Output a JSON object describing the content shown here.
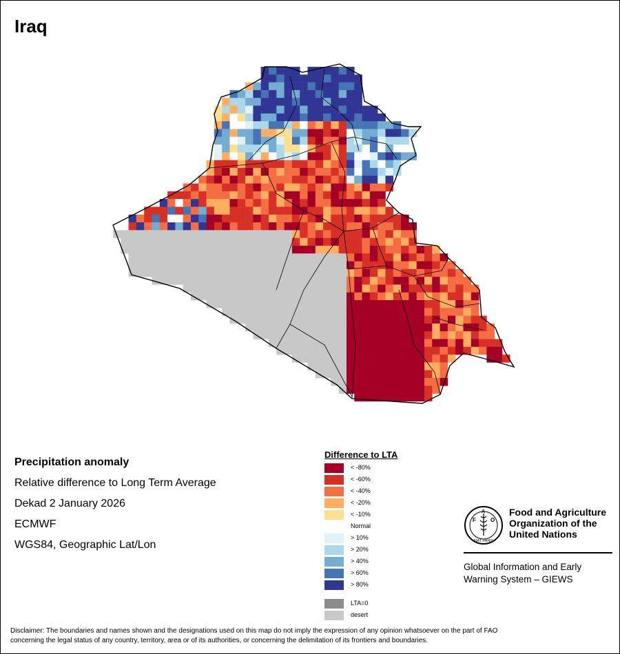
{
  "title": "Iraq",
  "info": {
    "heading": "Precipitation anomaly",
    "subtitle": "Relative difference to Long Term Average",
    "period": "Dekad 2 January 2026",
    "model": "ECMWF",
    "projection": "WGS84, Geographic Lat/Lon"
  },
  "legend": {
    "title": "Difference to LTA",
    "items": [
      {
        "label": "< -80%",
        "color": "#a50026"
      },
      {
        "label": "< -60%",
        "color": "#d73027"
      },
      {
        "label": "< -40%",
        "color": "#f46d43"
      },
      {
        "label": "< -20%",
        "color": "#fdae61"
      },
      {
        "label": "< -10%",
        "color": "#fee090"
      },
      {
        "label": "Normal",
        "color": "#ffffff"
      },
      {
        "label": "> 10%",
        "color": "#e0f3f8"
      },
      {
        "label": "> 20%",
        "color": "#abd9e9"
      },
      {
        "label": "> 40%",
        "color": "#74add1"
      },
      {
        "label": "> 60%",
        "color": "#4575b4"
      },
      {
        "label": "> 80%",
        "color": "#313695"
      }
    ],
    "extra": [
      {
        "label": "LTA=0",
        "color": "#8c8c8c"
      },
      {
        "label": "desert",
        "color": "#c8c8c8"
      }
    ]
  },
  "logo": {
    "org_line1": "Food and Agriculture",
    "org_line2": "Organization of the",
    "org_line3": "United Nations",
    "giews_line1": "Global Information and Early",
    "giews_line2": "Warning System – GIEWS",
    "letters": [
      "F",
      "A",
      "O"
    ],
    "motto": "FIAT PANIS"
  },
  "disclaimer_line1": "Disclaimer: The boundaries and names shown and the designations used on this map do not imply the expression of any opinion whatsoever on the part of FAO",
  "disclaimer_line2": "concerning the legal status of any country, territory, area or of its authorities, or concerning the delimitation of its frontiers and boundaries.",
  "colors": {
    "desert": "#c8c8c8",
    "border": "#000000"
  }
}
